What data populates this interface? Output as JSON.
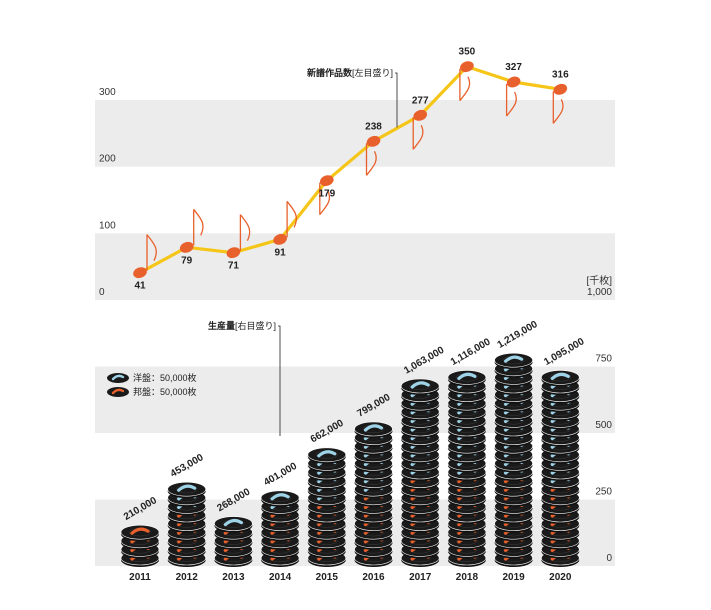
{
  "chart_data": [
    {
      "type": "line",
      "categories": [
        "2011",
        "2012",
        "2013",
        "2014",
        "2015",
        "2016",
        "2017",
        "2018",
        "2019",
        "2020"
      ],
      "series": [
        {
          "name": "新譜作品数",
          "values": [
            41,
            79,
            71,
            91,
            179,
            238,
            277,
            350,
            327,
            316
          ]
        }
      ],
      "annotation_title": "新譜作品数",
      "annotation_unit": "[左目盛り]",
      "yticks": [
        "0",
        "100",
        "200",
        "300"
      ],
      "ylim": [
        0,
        300
      ],
      "grid_bands": true,
      "colors": {
        "line": "#f5c518",
        "note": "#e8602c"
      }
    },
    {
      "type": "bar",
      "categories": [
        "2011",
        "2012",
        "2013",
        "2014",
        "2015",
        "2016",
        "2017",
        "2018",
        "2019",
        "2020"
      ],
      "series": [
        {
          "name": "生産量",
          "values": [
            210000,
            453000,
            268000,
            401000,
            662000,
            799000,
            1063000,
            1116000,
            1219000,
            1095000
          ]
        }
      ],
      "value_labels": [
        "210,000",
        "453,000",
        "268,000",
        "401,000",
        "662,000",
        "799,000",
        "1,063,000",
        "1,116,000",
        "1,219,000",
        "1,095,000"
      ],
      "annotation_title": "生産量",
      "annotation_unit": "[右目盛り]",
      "yticks": [
        "0",
        "250",
        "500",
        "750",
        "1,000"
      ],
      "yunit": "[千枚]",
      "ylim": [
        0,
        1000
      ],
      "legend": [
        {
          "label": "洋盤：50,000枚",
          "color": "#9fd3e8"
        },
        {
          "label": "邦盤：50,000枚",
          "color": "#e8602c"
        }
      ],
      "legend_position": "left",
      "disc_unit": 50000,
      "colors": {
        "disc": "#1a1a1a",
        "western": "#9fd3e8",
        "japanese": "#e8602c"
      }
    }
  ]
}
